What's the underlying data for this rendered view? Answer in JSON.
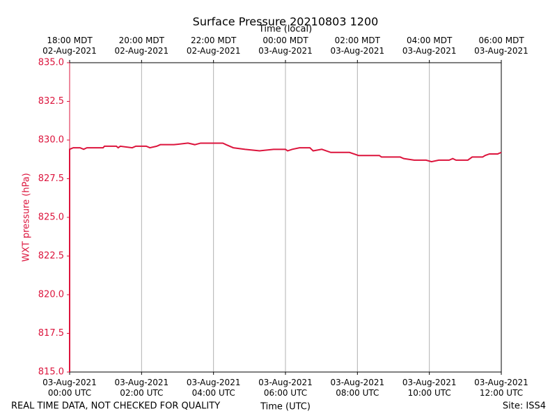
{
  "chart_data": {
    "type": "line",
    "title": "Surface Pressure 20210803 1200",
    "xlabel": "Time (UTC)",
    "x2label": "Time (local)",
    "ylabel": "WXT pressure (hPa)",
    "footer_left": "REAL TIME DATA, NOT CHECKED FOR QUALITY",
    "footer_right": "Site: ISS4",
    "xlim": [
      0,
      12
    ],
    "xticks": [
      {
        "value": 0,
        "label": "03-Aug-2021\n00:00 UTC"
      },
      {
        "value": 2,
        "label": "03-Aug-2021\n02:00 UTC"
      },
      {
        "value": 4,
        "label": "03-Aug-2021\n04:00 UTC"
      },
      {
        "value": 6,
        "label": "03-Aug-2021\n06:00 UTC"
      },
      {
        "value": 8,
        "label": "03-Aug-2021\n08:00 UTC"
      },
      {
        "value": 10,
        "label": "03-Aug-2021\n10:00 UTC"
      },
      {
        "value": 12,
        "label": "03-Aug-2021\n12:00 UTC"
      }
    ],
    "x2ticks": [
      {
        "value": 0,
        "label": "18:00 MDT\n02-Aug-2021"
      },
      {
        "value": 2,
        "label": "20:00 MDT\n02-Aug-2021"
      },
      {
        "value": 4,
        "label": "22:00 MDT\n02-Aug-2021"
      },
      {
        "value": 6,
        "label": "00:00 MDT\n03-Aug-2021"
      },
      {
        "value": 8,
        "label": "02:00 MDT\n03-Aug-2021"
      },
      {
        "value": 10,
        "label": "04:00 MDT\n03-Aug-2021"
      },
      {
        "value": 12,
        "label": "06:00 MDT\n03-Aug-2021"
      }
    ],
    "ylim": [
      815,
      835
    ],
    "yticks": [
      {
        "value": 815,
        "label": "815.0"
      },
      {
        "value": 817.5,
        "label": "817.5"
      },
      {
        "value": 820,
        "label": "820.0"
      },
      {
        "value": 822.5,
        "label": "822.5"
      },
      {
        "value": 825,
        "label": "825.0"
      },
      {
        "value": 827.5,
        "label": "827.5"
      },
      {
        "value": 830,
        "label": "830.0"
      },
      {
        "value": 832.5,
        "label": "832.5"
      },
      {
        "value": 835,
        "label": "835.0"
      }
    ],
    "grid": "x",
    "color": "#dc143c",
    "x": [
      0,
      0,
      0.1,
      0.29,
      0.39,
      0.48,
      0.93,
      0.97,
      1.3,
      1.35,
      1.41,
      1.74,
      1.84,
      2.13,
      2.23,
      2.42,
      2.52,
      2.9,
      3.29,
      3.48,
      3.64,
      4.26,
      4.35,
      4.55,
      4.88,
      5.28,
      5.67,
      6.0,
      6.06,
      6.19,
      6.39,
      6.68,
      6.77,
      7.01,
      7.26,
      7.78,
      8.03,
      8.61,
      8.67,
      9.19,
      9.29,
      9.58,
      9.91,
      10.06,
      10.26,
      10.55,
      10.65,
      10.74,
      11.07,
      11.19,
      11.48,
      11.55,
      11.67,
      11.9,
      12
    ],
    "values": [
      815,
      829.4,
      829.5,
      829.5,
      829.4,
      829.5,
      829.5,
      829.6,
      829.6,
      829.5,
      829.6,
      829.5,
      829.6,
      829.6,
      829.5,
      829.6,
      829.7,
      829.7,
      829.8,
      829.7,
      829.8,
      829.8,
      829.7,
      829.5,
      829.4,
      829.3,
      829.4,
      829.4,
      829.3,
      829.4,
      829.5,
      829.5,
      829.3,
      829.4,
      829.2,
      829.2,
      829.0,
      829.0,
      828.9,
      828.9,
      828.8,
      828.7,
      828.7,
      828.6,
      828.7,
      828.7,
      828.8,
      828.7,
      828.7,
      828.9,
      828.9,
      829.0,
      829.1,
      829.1,
      829.2
    ]
  }
}
